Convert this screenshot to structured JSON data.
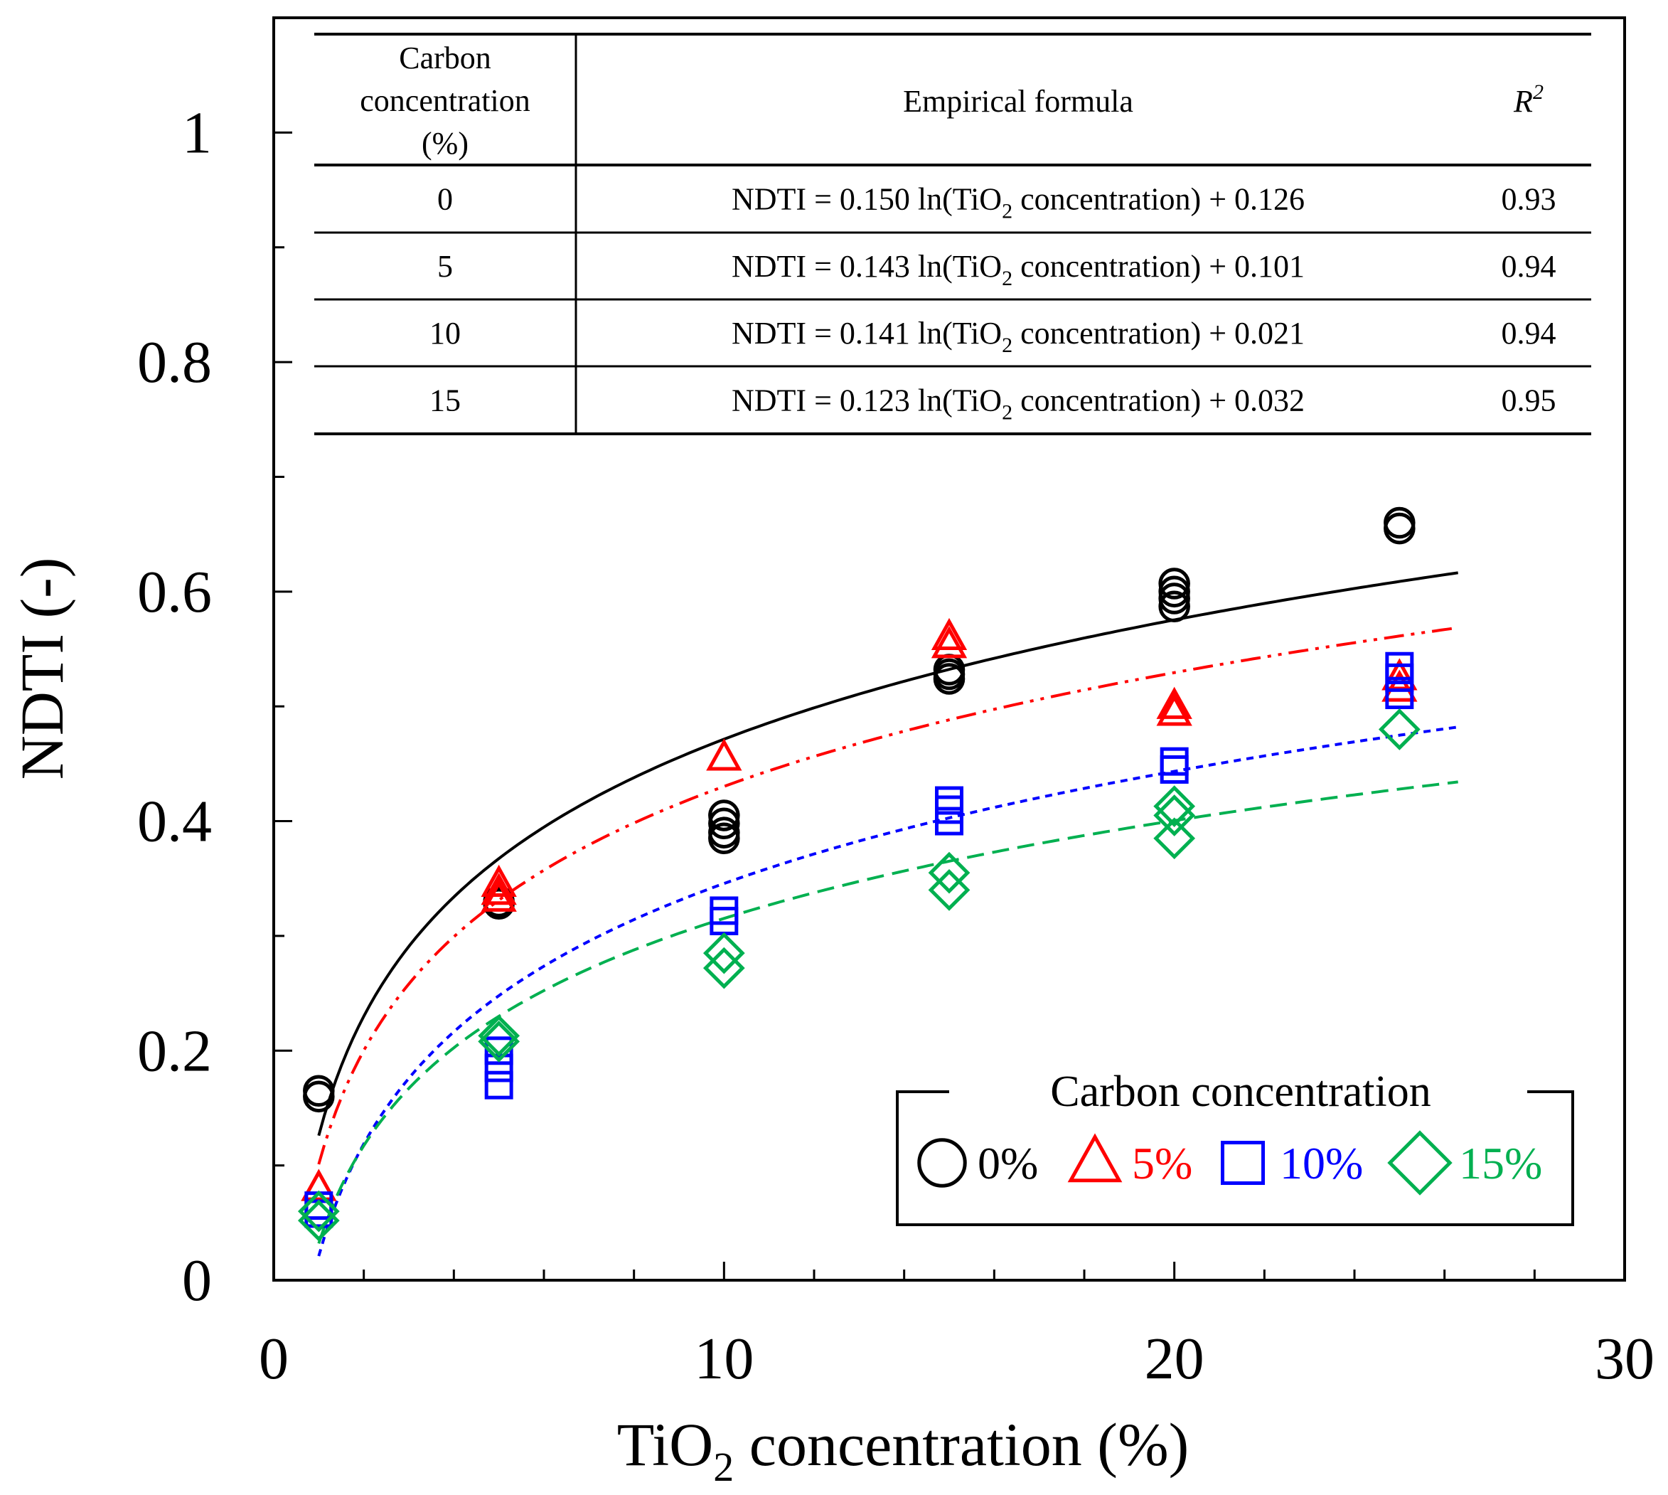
{
  "chart_data": {
    "type": "scatter",
    "xlabel": "TiO",
    "xlabel_sub": "2",
    "xlabel_suffix": " concentration (%)",
    "ylabel": "NDTI (-)",
    "xlim": [
      0,
      30
    ],
    "ylim": [
      0,
      1.1
    ],
    "x_ticks": [
      0,
      10,
      20,
      30
    ],
    "x_tick_labels": [
      "0",
      "10",
      "20",
      "30"
    ],
    "y_ticks": [
      0,
      0.2,
      0.4,
      0.6,
      0.8,
      1
    ],
    "y_tick_labels": [
      "0",
      "0.2",
      "0.4",
      "0.6",
      "0.8",
      "1"
    ],
    "legend": {
      "title": "Carbon concentration",
      "placement": "lower-right",
      "entries": [
        "0%",
        "5%",
        "10%",
        "15%"
      ]
    },
    "series": [
      {
        "name": "0%",
        "marker": "circle",
        "color": "#000000",
        "fit": {
          "a": 0.15,
          "b": 0.126,
          "dash": "solid"
        },
        "points": [
          [
            1,
            0.165
          ],
          [
            1,
            0.16
          ],
          [
            5,
            0.33
          ],
          [
            5,
            0.328
          ],
          [
            10,
            0.405
          ],
          [
            10,
            0.398
          ],
          [
            10,
            0.39
          ],
          [
            10,
            0.385
          ],
          [
            15,
            0.532
          ],
          [
            15,
            0.528
          ],
          [
            15,
            0.524
          ],
          [
            20,
            0.607
          ],
          [
            20,
            0.6
          ],
          [
            20,
            0.594
          ],
          [
            20,
            0.587
          ],
          [
            25,
            0.66
          ],
          [
            25,
            0.655
          ]
        ]
      },
      {
        "name": "5%",
        "marker": "triangle",
        "color": "#ff0000",
        "fit": {
          "a": 0.143,
          "b": 0.101,
          "dash": "dashdotdot"
        },
        "points": [
          [
            1,
            0.08
          ],
          [
            5,
            0.345
          ],
          [
            5,
            0.338
          ],
          [
            5,
            0.332
          ],
          [
            10,
            0.455
          ],
          [
            15,
            0.56
          ],
          [
            15,
            0.553
          ],
          [
            20,
            0.5
          ],
          [
            20,
            0.494
          ],
          [
            25,
            0.525
          ],
          [
            25,
            0.515
          ]
        ]
      },
      {
        "name": "10%",
        "marker": "square",
        "color": "#0000ff",
        "fit": {
          "a": 0.141,
          "b": 0.021,
          "dash": "dotted"
        },
        "points": [
          [
            1,
            0.065
          ],
          [
            1,
            0.058
          ],
          [
            5,
            0.2
          ],
          [
            5,
            0.185
          ],
          [
            5,
            0.17
          ],
          [
            10,
            0.322
          ],
          [
            10,
            0.313
          ],
          [
            15,
            0.418
          ],
          [
            15,
            0.41
          ],
          [
            15,
            0.4
          ],
          [
            20,
            0.452
          ],
          [
            20,
            0.445
          ],
          [
            25,
            0.535
          ],
          [
            25,
            0.525
          ],
          [
            25,
            0.51
          ]
        ]
      },
      {
        "name": "15%",
        "marker": "diamond",
        "color": "#00b050",
        "fit": {
          "a": 0.123,
          "b": 0.032,
          "dash": "dashed"
        },
        "points": [
          [
            1,
            0.06
          ],
          [
            1,
            0.052
          ],
          [
            5,
            0.213
          ],
          [
            5,
            0.208
          ],
          [
            10,
            0.285
          ],
          [
            10,
            0.272
          ],
          [
            15,
            0.355
          ],
          [
            15,
            0.34
          ],
          [
            20,
            0.413
          ],
          [
            20,
            0.405
          ],
          [
            20,
            0.385
          ],
          [
            25,
            0.48
          ]
        ]
      }
    ],
    "formula_table": {
      "header": {
        "col1": [
          "Carbon",
          "concentration",
          "(%)"
        ],
        "col2": "Empirical formula",
        "col3_base": "R",
        "col3_sup": "2"
      },
      "rows": [
        {
          "carbon": "0",
          "formula_pre": "NDTI = 0.150 ln(TiO",
          "formula_sub": "2",
          "formula_post": " concentration)  + 0.126",
          "r2": "0.93"
        },
        {
          "carbon": "5",
          "formula_pre": "NDTI = 0.143 ln(TiO",
          "formula_sub": "2",
          "formula_post": " concentration)  + 0.101",
          "r2": "0.94"
        },
        {
          "carbon": "10",
          "formula_pre": "NDTI = 0.141 ln(TiO",
          "formula_sub": "2",
          "formula_post": " concentration)  + 0.021",
          "r2": "0.94"
        },
        {
          "carbon": "15",
          "formula_pre": "NDTI = 0.123 ln(TiO",
          "formula_sub": "2",
          "formula_post": " concentration)  + 0.032",
          "r2": "0.95"
        }
      ]
    }
  }
}
